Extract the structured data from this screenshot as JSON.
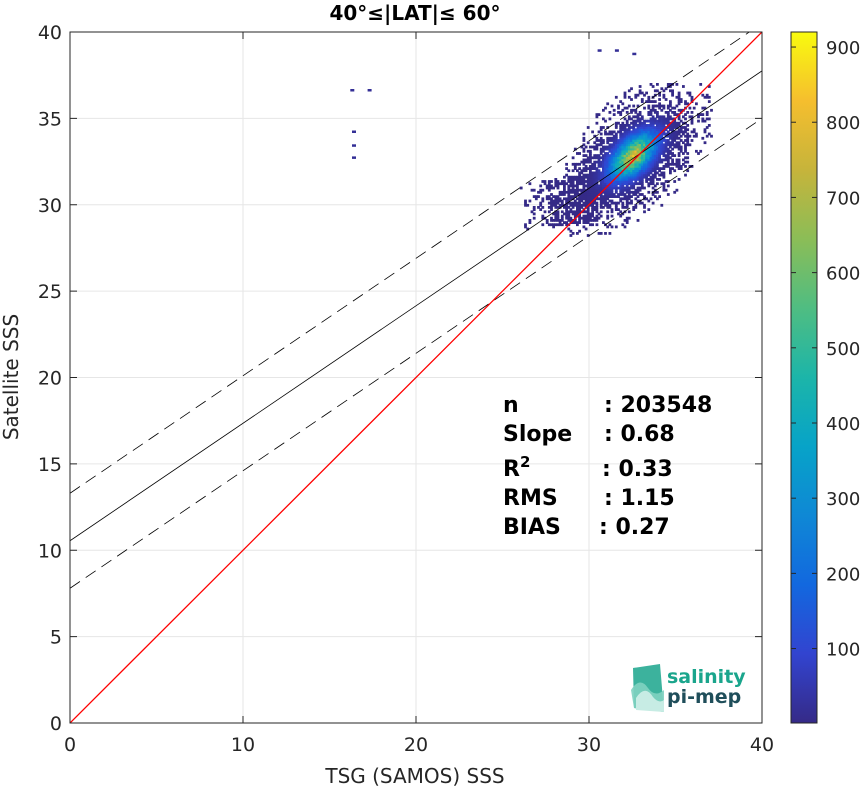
{
  "chart_data": {
    "type": "heatmap",
    "title": "40°≤|LAT|≤ 60°",
    "xlabel": "TSG (SAMOS) SSS",
    "ylabel": "Satellite SSS",
    "xlim": [
      0,
      40
    ],
    "ylim": [
      0,
      40
    ],
    "xticks": [
      "0",
      "10",
      "20",
      "30",
      "40"
    ],
    "yticks": [
      "0",
      "5",
      "10",
      "15",
      "20",
      "25",
      "30",
      "35",
      "40"
    ],
    "grid": true,
    "colorbar": {
      "range": [
        1,
        920
      ],
      "ticks": [
        "100",
        "200",
        "300",
        "400",
        "500",
        "600",
        "700",
        "800",
        "900"
      ],
      "colormap": "parula"
    },
    "density_core": {
      "x_center": 32.5,
      "y_center": 32.8,
      "x_range": [
        26,
        37
      ],
      "y_range": [
        25.3,
        37
      ]
    },
    "outliers": [
      {
        "x": 16.2,
        "y": 36.7
      },
      {
        "x": 17.2,
        "y": 36.7
      },
      {
        "x": 16.3,
        "y": 34.3
      },
      {
        "x": 16.3,
        "y": 33.5
      },
      {
        "x": 16.3,
        "y": 32.8
      },
      {
        "x": 30.5,
        "y": 39.0
      },
      {
        "x": 31.5,
        "y": 39.0
      },
      {
        "x": 32.5,
        "y": 38.8
      }
    ],
    "lines": {
      "identity": {
        "slope": 1,
        "intercept": 0,
        "color": "#ff0000"
      },
      "fit": {
        "slope": 0.68,
        "intercept": 10.55,
        "color": "#000000"
      },
      "upper_band": {
        "slope": 0.68,
        "intercept": 13.3,
        "style": "dashed"
      },
      "lower_band": {
        "slope": 0.68,
        "intercept": 7.8,
        "style": "dashed"
      }
    },
    "stats": [
      {
        "label": "n",
        "value": ": 203548"
      },
      {
        "label": "Slope",
        "value": ": 0.68"
      },
      {
        "label": "R",
        "sup": "2",
        "value": ": 0.33"
      },
      {
        "label": "RMS",
        "value": ": 1.15"
      },
      {
        "label": "BIAS",
        "value": ": 0.27"
      }
    ]
  },
  "logo": {
    "line1": "salinity",
    "line2": "pi-mep",
    "color_line1": "#1aa58c",
    "color_line2": "#1f4e5a"
  }
}
